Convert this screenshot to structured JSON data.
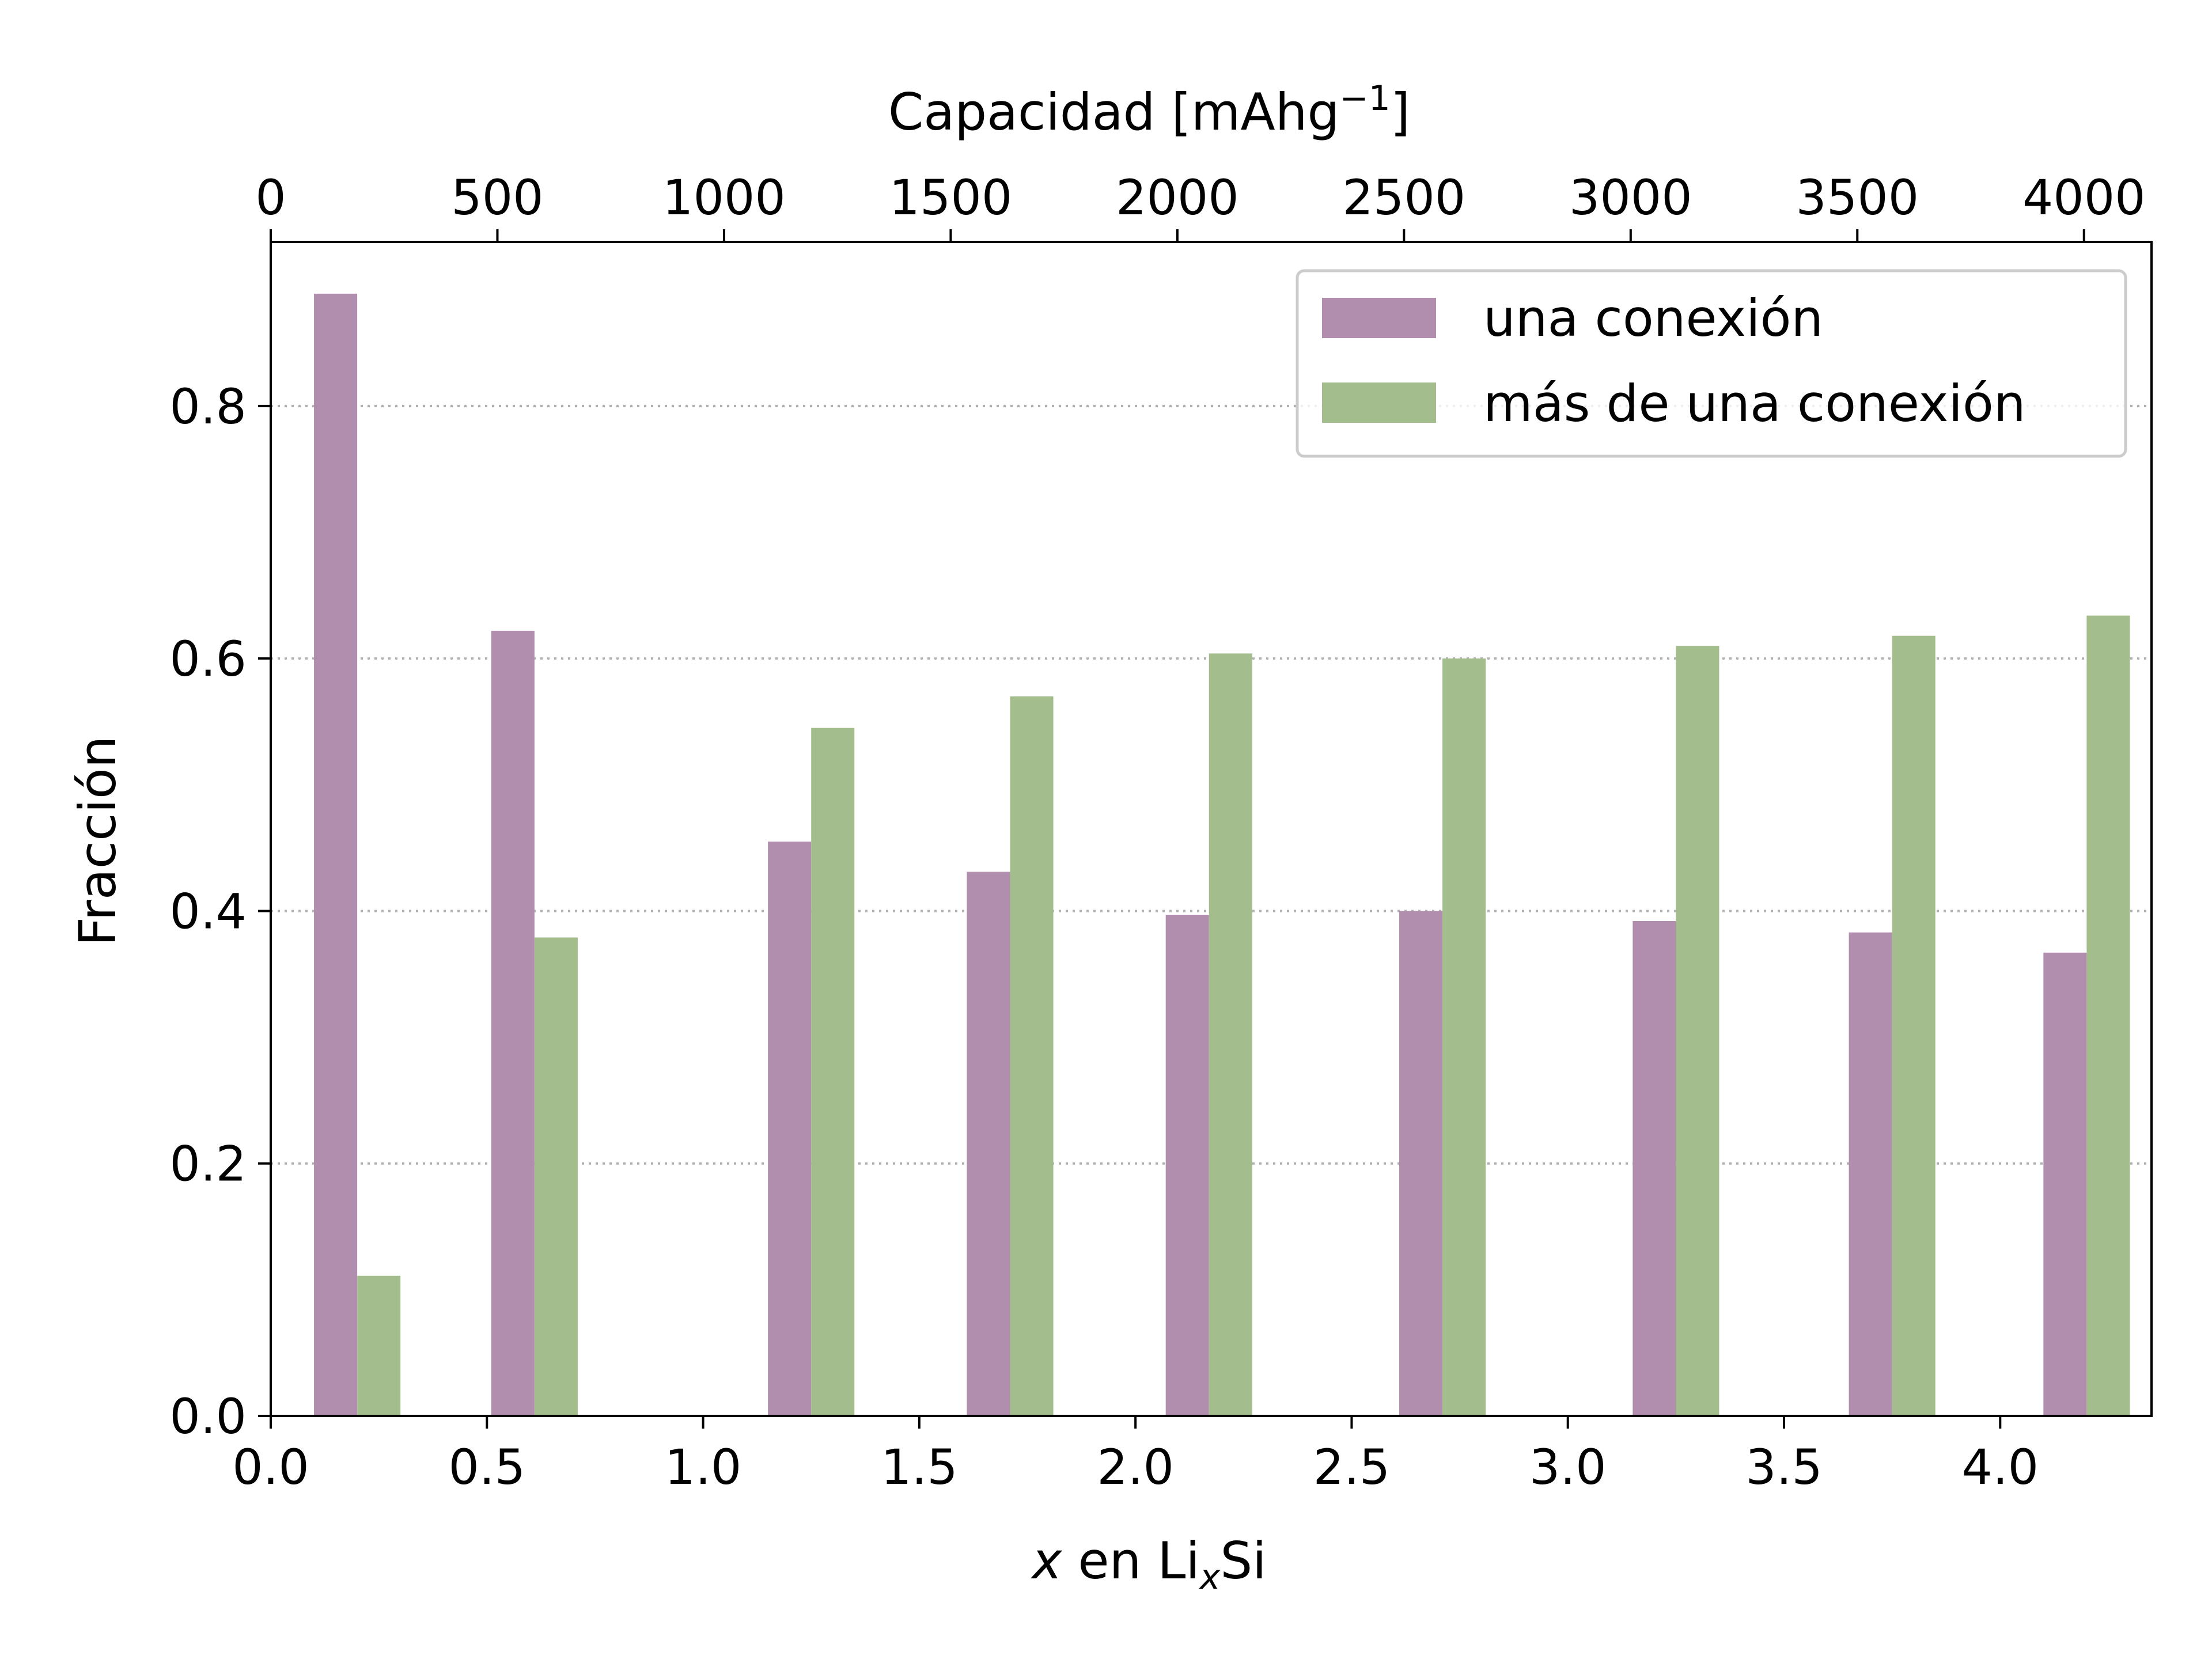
{
  "chart_data": {
    "type": "bar",
    "xlabel": {
      "var": "x",
      "mid": " en Li",
      "sub": "x",
      "end": "Si"
    },
    "ylabel": "Fracción",
    "top_xlabel": {
      "base": "Capacidad [mAhg",
      "sup": "−1",
      "end": "]"
    },
    "xlim": [
      0.0,
      4.35
    ],
    "ylim": [
      0.0,
      0.93
    ],
    "top_xlim": [
      0,
      4149
    ],
    "x_ticks": [
      "0.0",
      "0.5",
      "1.0",
      "1.5",
      "2.0",
      "2.5",
      "3.0",
      "3.5",
      "4.0"
    ],
    "y_ticks": [
      "0.0",
      "0.2",
      "0.4",
      "0.6",
      "0.8"
    ],
    "top_ticks": [
      "0",
      "500",
      "1000",
      "1500",
      "2000",
      "2500",
      "3000",
      "3500",
      "4000"
    ],
    "grid": "horizontal dotted",
    "legend_position": "top-right",
    "bar_width": 0.1,
    "x": [
      0.2,
      0.61,
      1.25,
      1.71,
      2.17,
      2.71,
      3.25,
      3.75,
      4.2
    ],
    "series": [
      {
        "name": "una conexión",
        "color": "#b18ead",
        "values": [
          0.889,
          0.622,
          0.455,
          0.431,
          0.397,
          0.4,
          0.392,
          0.383,
          0.367
        ]
      },
      {
        "name": "más de una conexión",
        "color": "#a3bd8c",
        "values": [
          0.111,
          0.379,
          0.545,
          0.57,
          0.604,
          0.6,
          0.61,
          0.618,
          0.634
        ]
      }
    ]
  }
}
